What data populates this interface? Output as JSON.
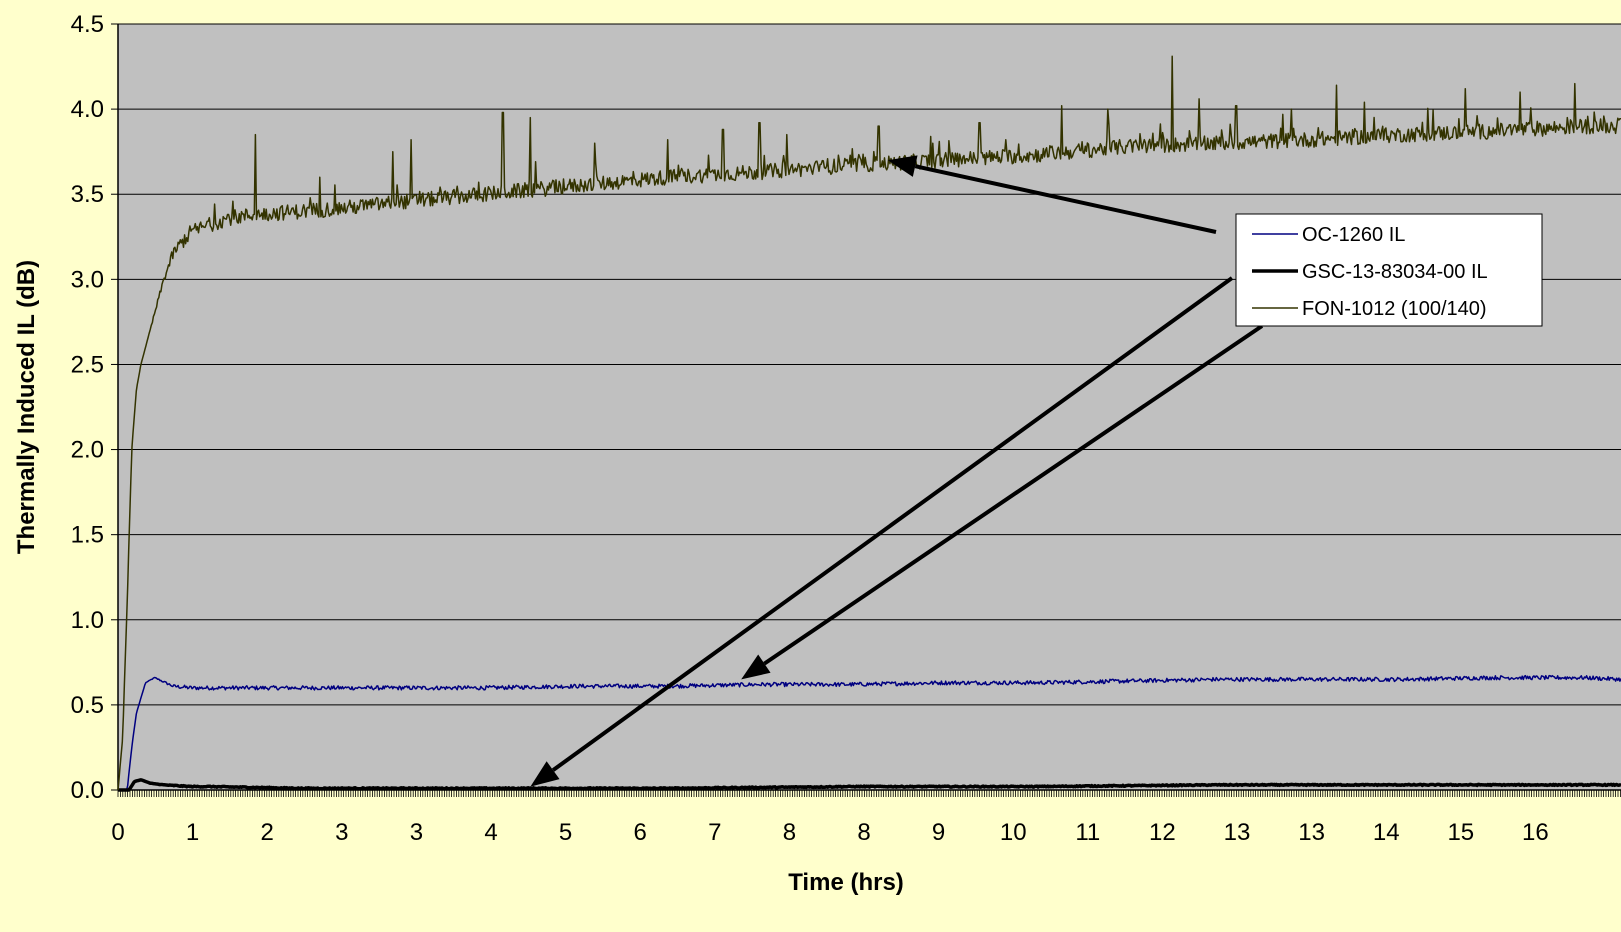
{
  "chart_data": {
    "type": "line",
    "title": "",
    "xlabel": "Time (hrs)",
    "ylabel": "Thermally Induced IL (dB)",
    "xlim": [
      0,
      16.4
    ],
    "ylim": [
      0,
      4.5
    ],
    "y_ticks": [
      "0.0",
      "0.5",
      "1.0",
      "1.5",
      "2.0",
      "2.5",
      "3.0",
      "3.5",
      "4.0",
      "4.5"
    ],
    "x_tick_labels": [
      "0",
      "1",
      "2",
      "3",
      "3",
      "4",
      "5",
      "6",
      "7",
      "8",
      "8",
      "9",
      "10",
      "11",
      "12",
      "13",
      "13",
      "14",
      "15",
      "16"
    ],
    "grid": {
      "horizontal": true,
      "vertical": false
    },
    "legend": "right",
    "colors": {
      "background": "#ffffcc",
      "plot_area": "#c0c0c0",
      "grid": "#000000"
    },
    "series": [
      {
        "name": "OC-1260 IL",
        "color": "#000080",
        "width": 1.5,
        "x": [
          0,
          0.1,
          0.15,
          0.2,
          0.3,
          0.4,
          0.6,
          0.8,
          1,
          1.5,
          2,
          3,
          4,
          5,
          6,
          7,
          8,
          9,
          10,
          11,
          12,
          13,
          14,
          15,
          16,
          16.4
        ],
        "y": [
          0,
          0,
          0.25,
          0.45,
          0.63,
          0.66,
          0.61,
          0.6,
          0.6,
          0.6,
          0.6,
          0.6,
          0.6,
          0.61,
          0.61,
          0.62,
          0.62,
          0.63,
          0.63,
          0.64,
          0.65,
          0.65,
          0.65,
          0.66,
          0.66,
          0.65
        ]
      },
      {
        "name": "GSC-13-83034-00 IL",
        "color": "#000000",
        "width": 3.5,
        "x": [
          0,
          0.12,
          0.18,
          0.25,
          0.35,
          0.5,
          0.8,
          1,
          2,
          4,
          6,
          8,
          10,
          12,
          14,
          16,
          16.4
        ],
        "y": [
          0,
          0,
          0.05,
          0.06,
          0.04,
          0.03,
          0.02,
          0.02,
          0.01,
          0.01,
          0.01,
          0.02,
          0.02,
          0.03,
          0.03,
          0.03,
          0.03
        ]
      },
      {
        "name": "FON-1012 (100/140)",
        "color": "#333300",
        "width": 1.5,
        "x": [
          0,
          0.05,
          0.1,
          0.15,
          0.2,
          0.25,
          0.3,
          0.4,
          0.5,
          0.6,
          0.7,
          0.8,
          1,
          1.2,
          1.5,
          2,
          2.5,
          3,
          4,
          5,
          6,
          7,
          8,
          9,
          10,
          11,
          12,
          13,
          14,
          15,
          16,
          16.4
        ],
        "y": [
          0,
          0.3,
          1.1,
          2,
          2.35,
          2.5,
          2.6,
          2.8,
          3.0,
          3.15,
          3.22,
          3.28,
          3.32,
          3.36,
          3.38,
          3.4,
          3.42,
          3.45,
          3.5,
          3.55,
          3.6,
          3.63,
          3.67,
          3.7,
          3.73,
          3.78,
          3.8,
          3.82,
          3.85,
          3.87,
          3.9,
          3.9
        ],
        "spikes": [
          [
            1.5,
            3.85
          ],
          [
            2.2,
            3.6
          ],
          [
            3.0,
            3.75
          ],
          [
            3.2,
            3.82
          ],
          [
            4.2,
            3.98
          ],
          [
            4.5,
            3.95
          ],
          [
            5.2,
            3.8
          ],
          [
            6.0,
            3.82
          ],
          [
            6.6,
            3.88
          ],
          [
            7.0,
            3.92
          ],
          [
            7.3,
            3.85
          ],
          [
            8.3,
            3.9
          ],
          [
            9.4,
            3.92
          ],
          [
            10.3,
            4.02
          ],
          [
            10.8,
            4.0
          ],
          [
            11.5,
            4.31
          ],
          [
            11.8,
            4.06
          ],
          [
            12.2,
            4.02
          ],
          [
            12.8,
            4.0
          ],
          [
            13.3,
            4.14
          ],
          [
            13.6,
            4.04
          ],
          [
            14.7,
            4.12
          ],
          [
            15.3,
            4.1
          ],
          [
            15.9,
            4.15
          ]
        ]
      }
    ],
    "annotations": [
      {
        "type": "arrow",
        "from_legend": "top",
        "to": [
          8.4,
          3.7
        ]
      },
      {
        "type": "arrow",
        "from_legend": "middle",
        "to": [
          4.5,
          0.02
        ]
      },
      {
        "type": "arrow",
        "from_legend": "bottom",
        "to": [
          6.8,
          0.65
        ]
      }
    ]
  }
}
